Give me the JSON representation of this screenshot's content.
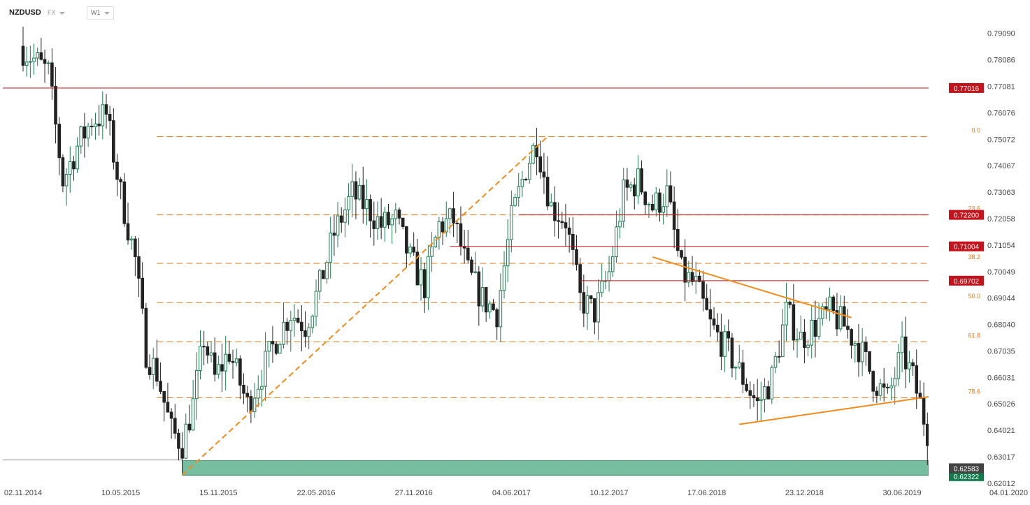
{
  "header": {
    "symbol": "NZDUSD",
    "market": "FX",
    "timeframe": "W1"
  },
  "colors": {
    "bull": "#1e7a50",
    "bear": "#222222",
    "resistance": "#c4131b",
    "fib": "#d97a1b",
    "trend": "#f08b1c",
    "support_zone": "#5fb38f",
    "support_badge": "#137a4c",
    "price_badge": "#444444"
  },
  "chart_data": {
    "type": "candlestick",
    "symbol": "NZDUSD",
    "timeframe": "W1",
    "y_axis": {
      "range": [
        0.6201,
        0.7956
      ],
      "ticks": [
        "0.79090",
        "0.78086",
        "0.77081",
        "0.76076",
        "0.75072",
        "0.74067",
        "0.73063",
        "0.72058",
        "0.71054",
        "0.70049",
        "0.69044",
        "0.68040",
        "0.67035",
        "0.66031",
        "0.65026",
        "0.64021",
        "0.63017",
        "0.62012"
      ]
    },
    "x_axis": {
      "range": [
        "2014-11-02",
        "2020-01-04"
      ],
      "ticks": [
        "02.11.2014",
        "10.05.2015",
        "15.11.2015",
        "22.05.2016",
        "27.11.2016",
        "04.06.2017",
        "10.12.2017",
        "17.06.2018",
        "23.12.2018",
        "30.06.2019",
        "04.01.2020"
      ]
    },
    "price_path": [
      [
        "2014-11-02",
        0.786
      ],
      [
        "2014-12-28",
        0.776
      ],
      [
        "2015-01-25",
        0.735
      ],
      [
        "2015-02-22",
        0.748
      ],
      [
        "2015-03-22",
        0.758
      ],
      [
        "2015-04-19",
        0.76
      ],
      [
        "2015-05-17",
        0.73
      ],
      [
        "2015-06-14",
        0.705
      ],
      [
        "2015-07-05",
        0.67
      ],
      [
        "2015-07-26",
        0.662
      ],
      [
        "2015-08-23",
        0.64
      ],
      [
        "2015-09-13",
        0.635
      ],
      [
        "2015-10-04",
        0.65
      ],
      [
        "2015-10-25",
        0.675
      ],
      [
        "2015-11-15",
        0.66
      ],
      [
        "2015-12-13",
        0.67
      ],
      [
        "2016-01-17",
        0.65
      ],
      [
        "2016-02-14",
        0.662
      ],
      [
        "2016-03-13",
        0.675
      ],
      [
        "2016-04-10",
        0.685
      ],
      [
        "2016-05-08",
        0.68
      ],
      [
        "2016-06-05",
        0.695
      ],
      [
        "2016-07-03",
        0.715
      ],
      [
        "2016-08-07",
        0.73
      ],
      [
        "2016-09-04",
        0.725
      ],
      [
        "2016-10-02",
        0.718
      ],
      [
        "2016-10-30",
        0.72
      ],
      [
        "2016-11-27",
        0.705
      ],
      [
        "2016-12-25",
        0.695
      ],
      [
        "2017-01-22",
        0.718
      ],
      [
        "2017-02-19",
        0.72
      ],
      [
        "2017-03-19",
        0.7
      ],
      [
        "2017-04-16",
        0.69
      ],
      [
        "2017-05-14",
        0.685
      ],
      [
        "2017-06-11",
        0.72
      ],
      [
        "2017-07-09",
        0.74
      ],
      [
        "2017-07-30",
        0.75
      ],
      [
        "2017-08-27",
        0.725
      ],
      [
        "2017-09-24",
        0.72
      ],
      [
        "2017-10-22",
        0.69
      ],
      [
        "2017-11-19",
        0.685
      ],
      [
        "2017-12-17",
        0.7
      ],
      [
        "2018-01-14",
        0.73
      ],
      [
        "2018-02-11",
        0.735
      ],
      [
        "2018-03-11",
        0.725
      ],
      [
        "2018-04-08",
        0.73
      ],
      [
        "2018-05-06",
        0.7
      ],
      [
        "2018-06-03",
        0.695
      ],
      [
        "2018-07-01",
        0.68
      ],
      [
        "2018-08-05",
        0.67
      ],
      [
        "2018-09-02",
        0.66
      ],
      [
        "2018-09-30",
        0.65
      ],
      [
        "2018-10-28",
        0.66
      ],
      [
        "2018-11-25",
        0.685
      ],
      [
        "2018-12-23",
        0.675
      ],
      [
        "2019-01-20",
        0.68
      ],
      [
        "2019-02-17",
        0.685
      ],
      [
        "2019-03-17",
        0.68
      ],
      [
        "2019-04-14",
        0.672
      ],
      [
        "2019-05-12",
        0.66
      ],
      [
        "2019-06-09",
        0.652
      ],
      [
        "2019-07-07",
        0.67
      ],
      [
        "2019-07-28",
        0.66
      ],
      [
        "2019-08-25",
        0.64
      ],
      [
        "2019-09-22",
        0.63
      ],
      [
        "2019-10-06",
        0.6258
      ]
    ],
    "resistance_levels": [
      "0.77016",
      "0.72200",
      "0.71004",
      "0.69702"
    ],
    "support_zone": {
      "top": 0.6287,
      "bottom": 0.6232,
      "label": "0.62322"
    },
    "last_price": "0.62583",
    "fibonacci": {
      "levels": [
        {
          "label": "0.0",
          "price": 0.7517
        },
        {
          "label": "23.6",
          "price": 0.722
        },
        {
          "label": "38.2",
          "price": 0.7036
        },
        {
          "label": "50.0",
          "price": 0.6887
        },
        {
          "label": "61.8",
          "price": 0.6738
        },
        {
          "label": "78.6",
          "price": 0.6526
        }
      ]
    },
    "trendlines": [
      {
        "style": "dashed",
        "from": [
          "2015-09-06",
          0.6232
        ],
        "to": [
          "2017-08-13",
          0.7517
        ]
      },
      {
        "style": "solid",
        "from": [
          "2018-03-04",
          0.706
        ],
        "to": [
          "2019-03-24",
          0.683
        ]
      },
      {
        "style": "solid",
        "from": [
          "2018-08-19",
          0.6425
        ],
        "to": [
          "2019-09-08",
          0.6535
        ]
      }
    ]
  }
}
